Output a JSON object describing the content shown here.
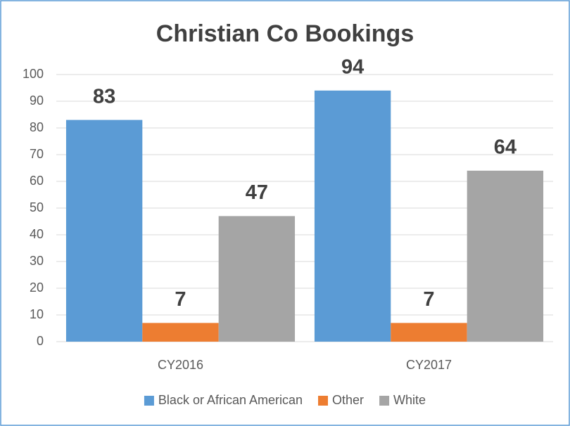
{
  "chart_data": {
    "type": "bar",
    "title": "Christian Co Bookings",
    "categories": [
      "CY2016",
      "CY2017"
    ],
    "series": [
      {
        "name": "Black or African American",
        "color": "#5b9bd5",
        "values": [
          83,
          94
        ]
      },
      {
        "name": "Other",
        "color": "#ed7d31",
        "values": [
          7,
          7
        ]
      },
      {
        "name": "White",
        "color": "#a5a5a5",
        "values": [
          47,
          64
        ]
      }
    ],
    "ylim": [
      0,
      100
    ],
    "yticks": [
      0,
      10,
      20,
      30,
      40,
      50,
      60,
      70,
      80,
      90,
      100
    ],
    "grid": true,
    "legend": "bottom"
  }
}
